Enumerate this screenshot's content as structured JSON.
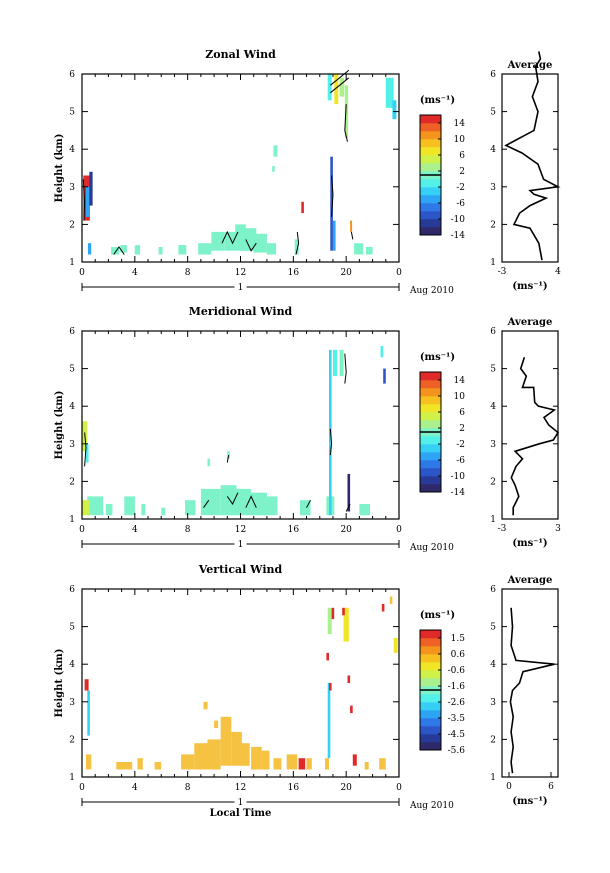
{
  "colors": {
    "colorbar": [
      "#2e2a6a",
      "#283a98",
      "#2c56c8",
      "#2e78e8",
      "#2ea4f4",
      "#36d0f4",
      "#52f0e8",
      "#7ef2c8",
      "#aaf08c",
      "#d0f04a",
      "#f0e626",
      "#f8c01e",
      "#f4941c",
      "#ee6024",
      "#e02a2a"
    ],
    "vertical_fill": "#f5c242"
  },
  "chart_data": [
    {
      "type": "heatmap",
      "title": "Zonal Wind",
      "ylabel": "Height (km)",
      "xlim": [
        0,
        24
      ],
      "ylim": [
        1,
        6
      ],
      "x_ticks": [
        "0",
        "4",
        "8",
        "12",
        "16",
        "20",
        "0"
      ],
      "y_ticks": [
        "1",
        "2",
        "3",
        "4",
        "5",
        "6"
      ],
      "day_label": "1",
      "date_label": "Aug 2010",
      "colorbar": {
        "unit": "(ms⁻¹)",
        "ticks": [
          "14",
          "10",
          "6",
          "2",
          "-2",
          "-6",
          "-10",
          "-14"
        ],
        "range": [
          -16,
          16
        ]
      },
      "cells": [
        [
          0.1,
          2.1,
          0.5,
          1.2,
          14
        ],
        [
          0.3,
          2.2,
          0.3,
          0.8,
          -6
        ],
        [
          0.55,
          2.5,
          0.25,
          0.9,
          -12
        ],
        [
          0.45,
          1.2,
          0.25,
          0.3,
          -6
        ],
        [
          2.2,
          1.2,
          0.6,
          0.2,
          0
        ],
        [
          2.9,
          1.25,
          0.5,
          0.2,
          1
        ],
        [
          4.0,
          1.2,
          0.4,
          0.25,
          1
        ],
        [
          5.8,
          1.2,
          0.3,
          0.2,
          1
        ],
        [
          7.3,
          1.2,
          0.6,
          0.25,
          1
        ],
        [
          8.8,
          1.2,
          1.0,
          0.3,
          1
        ],
        [
          9.8,
          1.3,
          1.0,
          0.5,
          1
        ],
        [
          10.8,
          1.3,
          0.8,
          0.5,
          1
        ],
        [
          11.6,
          1.3,
          0.8,
          0.7,
          1
        ],
        [
          12.2,
          1.3,
          1.0,
          0.6,
          1
        ],
        [
          13.0,
          1.25,
          1.0,
          0.5,
          1
        ],
        [
          14.0,
          1.2,
          0.7,
          0.3,
          1
        ],
        [
          14.5,
          3.8,
          0.3,
          0.3,
          0
        ],
        [
          14.4,
          3.4,
          0.2,
          0.15,
          0
        ],
        [
          16.1,
          1.2,
          0.3,
          0.4,
          1
        ],
        [
          16.6,
          2.3,
          0.2,
          0.3,
          14
        ],
        [
          18.8,
          1.3,
          0.2,
          2.5,
          -10
        ],
        [
          19.0,
          1.3,
          0.2,
          0.8,
          -6
        ],
        [
          18.6,
          5.3,
          0.3,
          0.7,
          -2
        ],
        [
          19.1,
          5.2,
          0.3,
          0.8,
          6
        ],
        [
          19.5,
          5.4,
          0.35,
          0.5,
          2
        ],
        [
          19.9,
          4.3,
          0.25,
          1.4,
          2
        ],
        [
          20.3,
          1.8,
          0.15,
          0.3,
          10
        ],
        [
          23.0,
          5.1,
          0.6,
          0.8,
          -2
        ],
        [
          23.5,
          4.8,
          0.3,
          0.5,
          -4
        ],
        [
          20.6,
          1.2,
          0.7,
          0.3,
          0
        ],
        [
          21.5,
          1.2,
          0.5,
          0.2,
          0
        ]
      ],
      "contours": [
        [
          [
            0.1,
            3.2
          ],
          [
            0.2,
            2.6
          ],
          [
            0.15,
            2.1
          ]
        ],
        [
          [
            2.4,
            1.2
          ],
          [
            2.8,
            1.4
          ],
          [
            3.2,
            1.2
          ]
        ],
        [
          [
            10.6,
            1.5
          ],
          [
            11.0,
            1.8
          ],
          [
            11.4,
            1.5
          ],
          [
            11.8,
            1.8
          ]
        ],
        [
          [
            12.4,
            1.6
          ],
          [
            12.8,
            1.3
          ],
          [
            13.2,
            1.5
          ]
        ],
        [
          [
            16.2,
            1.2
          ],
          [
            16.4,
            1.5
          ],
          [
            16.3,
            1.8
          ]
        ],
        [
          [
            18.8,
            5.7
          ],
          [
            19.5,
            5.9
          ],
          [
            20.2,
            6.1
          ]
        ],
        [
          [
            18.8,
            5.5
          ],
          [
            19.5,
            5.7
          ],
          [
            20.2,
            5.9
          ]
        ],
        [
          [
            20.0,
            5.2
          ],
          [
            19.9,
            4.5
          ],
          [
            20.1,
            4.2
          ]
        ],
        [
          [
            18.9,
            3.3
          ],
          [
            19.0,
            2.8
          ],
          [
            18.9,
            2.2
          ]
        ],
        [
          [
            20.4,
            1.8
          ],
          [
            20.5,
            1.6
          ]
        ]
      ],
      "average": {
        "title": "Average",
        "xlabel": "(ms⁻¹)",
        "xlim": [
          -3,
          4
        ],
        "x_ticks": [
          "-3",
          "4"
        ],
        "profile": [
          [
            2.0,
            1.05
          ],
          [
            1.6,
            1.5
          ],
          [
            0.5,
            1.9
          ],
          [
            -1.5,
            2.0
          ],
          [
            -0.8,
            2.3
          ],
          [
            0.5,
            2.5
          ],
          [
            2.5,
            2.7
          ],
          [
            1.0,
            2.8
          ],
          [
            0.5,
            2.9
          ],
          [
            4.0,
            3.0
          ],
          [
            2.2,
            3.2
          ],
          [
            1.5,
            3.6
          ],
          [
            -0.5,
            3.9
          ],
          [
            -2.5,
            4.1
          ],
          [
            1.0,
            4.5
          ],
          [
            1.5,
            5.0
          ],
          [
            0.8,
            5.4
          ],
          [
            1.5,
            5.8
          ],
          [
            1.2,
            6.2
          ],
          [
            1.8,
            6.4
          ],
          [
            1.6,
            6.6
          ]
        ]
      }
    },
    {
      "type": "heatmap",
      "title": "Meridional Wind",
      "ylabel": "Height (km)",
      "xlim": [
        0,
        24
      ],
      "ylim": [
        1,
        6
      ],
      "x_ticks": [
        "0",
        "4",
        "8",
        "12",
        "16",
        "20",
        "0"
      ],
      "y_ticks": [
        "1",
        "2",
        "3",
        "4",
        "5",
        "6"
      ],
      "day_label": "1",
      "date_label": "Aug 2010",
      "colorbar": {
        "unit": "(ms⁻¹)",
        "ticks": [
          "14",
          "10",
          "6",
          "2",
          "-2",
          "-6",
          "-10",
          "-14"
        ],
        "range": [
          -16,
          16
        ]
      },
      "cells": [
        [
          0.0,
          2.8,
          0.4,
          0.8,
          4
        ],
        [
          0.3,
          2.5,
          0.2,
          0.5,
          -2
        ],
        [
          0.4,
          1.1,
          1.2,
          0.5,
          1
        ],
        [
          0.0,
          1.1,
          0.6,
          0.4,
          4
        ],
        [
          1.8,
          1.1,
          0.5,
          0.3,
          1
        ],
        [
          3.2,
          1.1,
          0.8,
          0.5,
          1
        ],
        [
          4.5,
          1.1,
          0.3,
          0.3,
          1
        ],
        [
          6.0,
          1.1,
          0.3,
          0.2,
          1
        ],
        [
          7.8,
          1.1,
          0.8,
          0.4,
          1
        ],
        [
          9.0,
          1.1,
          1.5,
          0.7,
          1
        ],
        [
          10.5,
          1.1,
          1.2,
          0.8,
          1
        ],
        [
          11.5,
          1.1,
          1.3,
          0.7,
          1
        ],
        [
          12.8,
          1.1,
          1.2,
          0.6,
          1
        ],
        [
          14.0,
          1.1,
          0.8,
          0.5,
          1
        ],
        [
          16.5,
          1.1,
          0.8,
          0.4,
          1
        ],
        [
          18.5,
          1.1,
          0.6,
          0.5,
          1
        ],
        [
          18.7,
          1.1,
          0.2,
          4.4,
          -4
        ],
        [
          19.0,
          4.8,
          0.3,
          0.7,
          -2
        ],
        [
          19.5,
          4.8,
          0.3,
          0.7,
          1
        ],
        [
          20.1,
          1.2,
          0.2,
          1.0,
          -14
        ],
        [
          21.0,
          1.1,
          0.8,
          0.3,
          1
        ],
        [
          22.6,
          5.3,
          0.2,
          0.3,
          -2
        ],
        [
          22.8,
          4.6,
          0.2,
          0.4,
          -10
        ],
        [
          11.0,
          2.6,
          0.2,
          0.2,
          1
        ],
        [
          9.5,
          2.4,
          0.2,
          0.2,
          1
        ],
        [
          13.0,
          1.5,
          0.3,
          0.2,
          1
        ]
      ],
      "contours": [
        [
          [
            0.2,
            3.3
          ],
          [
            0.3,
            2.9
          ],
          [
            0.2,
            2.4
          ]
        ],
        [
          [
            11.0,
            1.6
          ],
          [
            11.4,
            1.4
          ],
          [
            11.8,
            1.7
          ]
        ],
        [
          [
            9.2,
            1.3
          ],
          [
            9.6,
            1.5
          ]
        ],
        [
          [
            12.4,
            1.3
          ],
          [
            12.8,
            1.6
          ],
          [
            13.2,
            1.3
          ]
        ],
        [
          [
            17.0,
            1.3
          ],
          [
            17.3,
            1.5
          ]
        ],
        [
          [
            18.8,
            3.4
          ],
          [
            18.9,
            3.0
          ],
          [
            18.8,
            2.7
          ]
        ],
        [
          [
            19.9,
            5.4
          ],
          [
            20.0,
            4.9
          ],
          [
            19.9,
            4.6
          ]
        ],
        [
          [
            11.1,
            2.7
          ],
          [
            11.0,
            2.5
          ]
        ],
        [
          [
            20.0,
            1.2
          ],
          [
            20.3,
            1.4
          ]
        ]
      ],
      "average": {
        "title": "Average",
        "xlabel": "(ms⁻¹)",
        "xlim": [
          -3,
          3
        ],
        "x_ticks": [
          "-3",
          "3"
        ],
        "profile": [
          [
            -1.8,
            1.1
          ],
          [
            -1.8,
            1.3
          ],
          [
            -1.2,
            1.6
          ],
          [
            -1.6,
            1.9
          ],
          [
            -2.0,
            2.1
          ],
          [
            -1.5,
            2.4
          ],
          [
            -0.8,
            2.6
          ],
          [
            -1.6,
            2.8
          ],
          [
            1.0,
            3.0
          ],
          [
            2.5,
            3.1
          ],
          [
            3.0,
            3.3
          ],
          [
            2.0,
            3.5
          ],
          [
            1.5,
            3.7
          ],
          [
            2.6,
            3.9
          ],
          [
            0.9,
            4.0
          ],
          [
            0.5,
            4.1
          ],
          [
            0.4,
            4.5
          ],
          [
            -0.8,
            4.5
          ],
          [
            -0.4,
            4.8
          ],
          [
            -1.0,
            5.0
          ],
          [
            -0.6,
            5.3
          ]
        ]
      }
    },
    {
      "type": "heatmap",
      "title": "Vertical Wind",
      "ylabel": "Height (km)",
      "xlabel": "Local Time",
      "xlim": [
        0,
        24
      ],
      "ylim": [
        1,
        6
      ],
      "x_ticks": [
        "0",
        "4",
        "8",
        "12",
        "16",
        "20",
        "0"
      ],
      "y_ticks": [
        "1",
        "2",
        "3",
        "4",
        "5",
        "6"
      ],
      "day_label": "1",
      "date_label": "Aug 2010",
      "colorbar": {
        "unit": "(ms⁻¹)",
        "ticks": [
          "1.5",
          "0.6",
          "-0.6",
          "-1.6",
          "-2.6",
          "-3.5",
          "-4.5",
          "-5.6"
        ],
        "range": [
          -6.0,
          2.0
        ]
      },
      "cells": [
        [
          0.3,
          1.2,
          0.4,
          0.4,
          0.6
        ],
        [
          0.4,
          2.1,
          0.2,
          1.2,
          -3.0
        ],
        [
          0.2,
          3.3,
          0.3,
          0.3,
          1.5
        ],
        [
          2.6,
          1.2,
          0.5,
          0.2,
          0.6
        ],
        [
          3.0,
          1.2,
          0.8,
          0.2,
          0.6
        ],
        [
          4.2,
          1.2,
          0.4,
          0.3,
          0.6
        ],
        [
          5.5,
          1.2,
          0.5,
          0.2,
          0.6
        ],
        [
          7.5,
          1.2,
          1.0,
          0.4,
          0.6
        ],
        [
          8.5,
          1.2,
          1.0,
          0.7,
          0.6
        ],
        [
          9.5,
          1.2,
          1.0,
          0.8,
          0.6
        ],
        [
          10.5,
          1.3,
          0.8,
          1.3,
          0.6
        ],
        [
          11.3,
          1.3,
          0.8,
          0.9,
          0.6
        ],
        [
          12.0,
          1.3,
          0.7,
          0.6,
          0.6
        ],
        [
          12.8,
          1.2,
          0.8,
          0.6,
          0.6
        ],
        [
          13.6,
          1.2,
          0.6,
          0.5,
          0.6
        ],
        [
          14.5,
          1.2,
          0.6,
          0.3,
          0.6
        ],
        [
          15.5,
          1.2,
          0.8,
          0.4,
          0.6
        ],
        [
          16.4,
          1.2,
          0.5,
          0.3,
          1.5
        ],
        [
          17.0,
          1.2,
          0.4,
          0.3,
          0.6
        ],
        [
          18.4,
          1.2,
          0.3,
          0.3,
          0.6
        ],
        [
          18.6,
          1.5,
          0.2,
          2.0,
          -3.0
        ],
        [
          18.7,
          3.3,
          0.2,
          0.2,
          1.5
        ],
        [
          18.6,
          4.8,
          0.3,
          0.7,
          -1.6
        ],
        [
          18.9,
          5.2,
          0.2,
          0.3,
          1.5
        ],
        [
          19.8,
          4.6,
          0.4,
          0.9,
          -0.6
        ],
        [
          19.7,
          5.3,
          0.2,
          0.2,
          1.5
        ],
        [
          20.1,
          3.5,
          0.2,
          0.2,
          1.5
        ],
        [
          20.3,
          2.7,
          0.2,
          0.2,
          1.5
        ],
        [
          20.5,
          1.3,
          0.3,
          0.3,
          1.5
        ],
        [
          21.4,
          1.2,
          0.3,
          0.2,
          0.6
        ],
        [
          22.5,
          1.2,
          0.5,
          0.3,
          0.6
        ],
        [
          22.7,
          5.4,
          0.2,
          0.2,
          1.5
        ],
        [
          23.6,
          4.3,
          0.3,
          0.4,
          -0.6
        ],
        [
          23.3,
          5.6,
          0.2,
          0.2,
          0.6
        ],
        [
          18.5,
          4.1,
          0.2,
          0.2,
          1.5
        ],
        [
          9.2,
          2.8,
          0.3,
          0.2,
          0.6
        ],
        [
          10.0,
          2.3,
          0.3,
          0.2,
          0.6
        ]
      ],
      "contours": [],
      "average": {
        "title": "Average",
        "xlabel": "(ms⁻¹)",
        "xlim": [
          -1,
          7
        ],
        "x_ticks": [
          "0",
          "6"
        ],
        "profile": [
          [
            0.5,
            1.1
          ],
          [
            0.3,
            1.4
          ],
          [
            0.6,
            1.8
          ],
          [
            0.3,
            2.2
          ],
          [
            0.6,
            2.6
          ],
          [
            0.2,
            3.0
          ],
          [
            0.5,
            3.3
          ],
          [
            1.5,
            3.5
          ],
          [
            2.0,
            3.8
          ],
          [
            6.5,
            4.0
          ],
          [
            1.0,
            4.1
          ],
          [
            0.3,
            4.5
          ],
          [
            0.5,
            5.0
          ],
          [
            0.3,
            5.5
          ]
        ]
      }
    }
  ]
}
